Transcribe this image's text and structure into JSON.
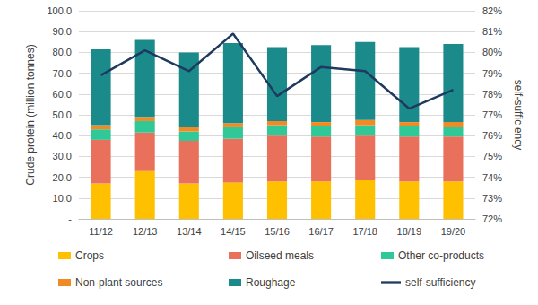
{
  "chart_data": {
    "type": "bar",
    "stacked": true,
    "grid": true,
    "legend": "bottom",
    "y_label": "Crude protein (million tonnes)",
    "y2_label": "self-sufficiency",
    "categories": [
      "11/12",
      "12/13",
      "13/14",
      "14/15",
      "15/16",
      "16/17",
      "17/18",
      "18/19",
      "19/20"
    ],
    "ylim": [
      0,
      100
    ],
    "yticks": [
      {
        "value": 0,
        "label": "-"
      },
      {
        "value": 10,
        "label": "10.0"
      },
      {
        "value": 20,
        "label": "20.0"
      },
      {
        "value": 30,
        "label": "30.0"
      },
      {
        "value": 40,
        "label": "40.0"
      },
      {
        "value": 50,
        "label": "50.0"
      },
      {
        "value": 60,
        "label": "60.0"
      },
      {
        "value": 70,
        "label": "70.0"
      },
      {
        "value": 80,
        "label": "80.0"
      },
      {
        "value": 90,
        "label": "90.0"
      },
      {
        "value": 100,
        "label": "100.0"
      }
    ],
    "y2lim": [
      72,
      82
    ],
    "y2ticks": [
      {
        "value": 72,
        "label": "72%"
      },
      {
        "value": 73,
        "label": "73%"
      },
      {
        "value": 74,
        "label": "74%"
      },
      {
        "value": 75,
        "label": "75%"
      },
      {
        "value": 76,
        "label": "76%"
      },
      {
        "value": 77,
        "label": "77%"
      },
      {
        "value": 78,
        "label": "78%"
      },
      {
        "value": 79,
        "label": "79%"
      },
      {
        "value": 80,
        "label": "80%"
      },
      {
        "value": 81,
        "label": "81%"
      },
      {
        "value": 82,
        "label": "82%"
      }
    ],
    "series": [
      {
        "name": "Crops",
        "color": "#ffc000",
        "values": [
          17,
          23,
          17,
          17.5,
          18,
          18,
          18.5,
          18,
          18
        ]
      },
      {
        "name": "Oilseed meals",
        "color": "#e9705a",
        "values": [
          21,
          18.5,
          20.5,
          21,
          22,
          21.5,
          21.5,
          21.5,
          21.5
        ]
      },
      {
        "name": "Other co-products",
        "color": "#2fc896",
        "values": [
          5,
          5.5,
          4.5,
          5.5,
          5,
          5,
          5,
          5,
          4.5
        ]
      },
      {
        "name": "Non-plant sources",
        "color": "#f08a24",
        "values": [
          2,
          2,
          2,
          2,
          2,
          2,
          2.5,
          2,
          2.5
        ]
      },
      {
        "name": "Roughage",
        "color": "#1b8a8a",
        "values": [
          36.5,
          37,
          36,
          38.5,
          35.5,
          37,
          37.5,
          36,
          37.5
        ]
      },
      {
        "name": "self-sufficiency",
        "type": "line",
        "axis": "y2",
        "color": "#1f3a5f",
        "values": [
          78.9,
          80.1,
          79.1,
          80.9,
          77.9,
          79.3,
          79.1,
          77.3,
          78.2
        ]
      }
    ]
  }
}
